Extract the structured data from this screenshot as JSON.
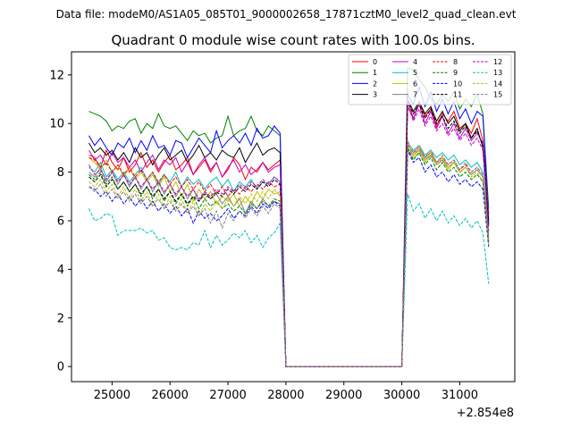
{
  "figure": {
    "suptitle": "Data file: modeM0/AS1A05_085T01_9000002658_17871cztM0_level2_quad_clean.evt",
    "title": "Quadrant 0 module wise count rates with 100.0s bins."
  },
  "chart_data": {
    "type": "line",
    "title": "Quadrant 0 module wise count rates with 100.0s bins.",
    "xlabel": "",
    "ylabel": "",
    "x_offset_label": "+2.854e8",
    "xlim": [
      24300,
      31950
    ],
    "ylim": [
      -0.62,
      12.95
    ],
    "xticks": [
      25000,
      26000,
      27000,
      28000,
      29000,
      30000,
      31000
    ],
    "xtick_labels": [
      "25000",
      "26000",
      "27000",
      "28000",
      "29000",
      "30000",
      "31000"
    ],
    "yticks": [
      0,
      2,
      4,
      6,
      8,
      10,
      12
    ],
    "ytick_labels": [
      "0",
      "2",
      "4",
      "6",
      "8",
      "10",
      "12"
    ],
    "grid": false,
    "legend_position": "top-right",
    "x_start": 24600,
    "bin_width": 100,
    "series": [
      {
        "name": "0",
        "color": "#ff0000",
        "dash": false,
        "values": [
          8.7,
          8.6,
          8.2,
          8.9,
          8.4,
          8.1,
          8.6,
          8.0,
          8.3,
          8.8,
          8.2,
          8.5,
          8.0,
          8.4,
          8.7,
          8.1,
          8.3,
          8.6,
          7.9,
          8.2,
          8.5,
          8.0,
          8.4,
          7.8,
          8.1,
          8.6,
          8.3,
          7.7,
          8.2,
          8.0,
          8.4,
          8.1,
          8.3,
          8.5,
          0.0,
          0.0,
          0.0,
          0.0,
          0.0,
          0.0,
          0.0,
          0.0,
          0.0,
          0.0,
          0.0,
          0.0,
          0.0,
          0.0,
          0.0,
          0.0,
          0.0,
          0.0,
          0.0,
          0.0,
          0.0,
          10.7,
          10.2,
          10.9,
          10.3,
          10.6,
          9.9,
          10.4,
          10.1,
          10.5,
          9.8,
          10.0,
          9.6,
          10.2,
          9.3,
          6.3
        ]
      },
      {
        "name": "1",
        "color": "#008000",
        "dash": false,
        "values": [
          10.5,
          10.4,
          10.3,
          10.1,
          9.7,
          9.9,
          9.8,
          10.1,
          10.2,
          9.6,
          10.0,
          9.8,
          10.4,
          9.9,
          9.8,
          9.9,
          9.6,
          9.3,
          9.7,
          9.5,
          9.6,
          9.2,
          9.4,
          9.5,
          10.3,
          9.5,
          9.7,
          9.8,
          10.3,
          9.7,
          9.5,
          9.9,
          9.7,
          9.5,
          0.0,
          0.0,
          0.0,
          0.0,
          0.0,
          0.0,
          0.0,
          0.0,
          0.0,
          0.0,
          0.0,
          0.0,
          0.0,
          0.0,
          0.0,
          0.0,
          0.0,
          0.0,
          0.0,
          0.0,
          0.0,
          12.3,
          12.2,
          11.8,
          11.5,
          11.0,
          10.8,
          11.2,
          10.9,
          11.3,
          10.6,
          11.0,
          10.7,
          11.2,
          10.4,
          6.5
        ]
      },
      {
        "name": "2",
        "color": "#0000ff",
        "dash": false,
        "values": [
          9.5,
          9.1,
          9.4,
          9.0,
          8.7,
          9.2,
          9.0,
          9.4,
          8.8,
          9.3,
          8.9,
          9.5,
          9.0,
          9.1,
          8.7,
          9.3,
          9.2,
          8.6,
          9.0,
          9.4,
          9.1,
          8.8,
          9.7,
          9.0,
          9.3,
          9.5,
          9.2,
          9.6,
          9.1,
          9.8,
          9.4,
          9.5,
          9.9,
          9.6,
          0.0,
          0.0,
          0.0,
          0.0,
          0.0,
          0.0,
          0.0,
          0.0,
          0.0,
          0.0,
          0.0,
          0.0,
          0.0,
          0.0,
          0.0,
          0.0,
          0.0,
          0.0,
          0.0,
          0.0,
          0.0,
          11.2,
          10.8,
          11.5,
          10.7,
          11.3,
          10.5,
          11.0,
          10.4,
          10.9,
          10.2,
          10.6,
          10.0,
          10.5,
          10.3,
          6.0
        ]
      },
      {
        "name": "3",
        "color": "#000000",
        "dash": false,
        "values": [
          9.2,
          8.8,
          9.0,
          8.7,
          8.9,
          8.5,
          8.8,
          8.4,
          9.0,
          8.6,
          8.8,
          8.3,
          8.7,
          9.0,
          8.5,
          8.7,
          8.9,
          8.4,
          8.7,
          9.1,
          8.6,
          8.8,
          8.5,
          8.9,
          8.7,
          8.6,
          9.0,
          8.4,
          8.8,
          9.2,
          8.7,
          8.9,
          9.0,
          8.8,
          0.0,
          0.0,
          0.0,
          0.0,
          0.0,
          0.0,
          0.0,
          0.0,
          0.0,
          0.0,
          0.0,
          0.0,
          0.0,
          0.0,
          0.0,
          0.0,
          0.0,
          0.0,
          0.0,
          0.0,
          0.0,
          11.0,
          10.5,
          10.9,
          10.4,
          10.7,
          10.1,
          10.5,
          10.0,
          10.3,
          9.7,
          10.0,
          9.4,
          9.8,
          9.0,
          5.8
        ]
      },
      {
        "name": "4",
        "color": "#bf00bf",
        "dash": false,
        "values": [
          8.9,
          8.5,
          8.7,
          8.3,
          8.8,
          8.4,
          8.6,
          8.2,
          8.5,
          8.0,
          8.4,
          8.7,
          8.1,
          8.5,
          8.3,
          8.6,
          8.0,
          8.4,
          7.9,
          8.3,
          8.6,
          8.1,
          8.4,
          7.8,
          8.2,
          8.5,
          8.0,
          8.3,
          7.9,
          8.1,
          8.4,
          8.0,
          8.2,
          8.3,
          0.0,
          0.0,
          0.0,
          0.0,
          0.0,
          0.0,
          0.0,
          0.0,
          0.0,
          0.0,
          0.0,
          0.0,
          0.0,
          0.0,
          0.0,
          0.0,
          0.0,
          0.0,
          0.0,
          0.0,
          0.0,
          11.0,
          10.2,
          10.8,
          10.0,
          10.5,
          9.8,
          10.3,
          9.6,
          10.0,
          9.4,
          9.8,
          9.3,
          9.6,
          9.2,
          6.2
        ]
      },
      {
        "name": "5",
        "color": "#00bfbf",
        "dash": false,
        "values": [
          8.2,
          8.0,
          8.4,
          7.8,
          8.1,
          7.7,
          8.0,
          7.6,
          7.9,
          8.2,
          7.7,
          8.0,
          7.5,
          7.9,
          7.6,
          8.0,
          7.4,
          7.8,
          7.5,
          7.7,
          7.3,
          7.6,
          7.8,
          7.4,
          7.7,
          7.2,
          7.6,
          7.4,
          7.7,
          7.3,
          7.6,
          7.5,
          7.8,
          7.6,
          0.0,
          0.0,
          0.0,
          0.0,
          0.0,
          0.0,
          0.0,
          0.0,
          0.0,
          0.0,
          0.0,
          0.0,
          0.0,
          0.0,
          0.0,
          0.0,
          0.0,
          0.0,
          0.0,
          0.0,
          0.0,
          9.2,
          8.9,
          9.1,
          8.7,
          8.9,
          8.6,
          8.8,
          8.5,
          8.7,
          8.3,
          8.5,
          8.2,
          8.4,
          8.0,
          5.5
        ]
      },
      {
        "name": "6",
        "color": "#bfbf00",
        "dash": false,
        "values": [
          8.6,
          8.4,
          8.1,
          8.5,
          8.0,
          8.3,
          7.8,
          8.2,
          7.7,
          8.0,
          7.6,
          7.9,
          7.4,
          7.8,
          7.2,
          7.6,
          7.0,
          7.5,
          6.8,
          7.3,
          6.9,
          7.2,
          6.7,
          7.0,
          6.8,
          7.1,
          6.6,
          7.0,
          6.7,
          7.2,
          6.9,
          7.3,
          7.1,
          7.2,
          0.0,
          0.0,
          0.0,
          0.0,
          0.0,
          0.0,
          0.0,
          0.0,
          0.0,
          0.0,
          0.0,
          0.0,
          0.0,
          0.0,
          0.0,
          0.0,
          0.0,
          0.0,
          0.0,
          0.0,
          0.0,
          8.9,
          8.6,
          8.8,
          8.4,
          8.7,
          8.3,
          8.5,
          8.1,
          8.4,
          8.0,
          8.2,
          7.9,
          8.1,
          7.8,
          5.2
        ]
      },
      {
        "name": "7",
        "color": "#808080",
        "dash": false,
        "values": [
          8.0,
          7.8,
          8.2,
          7.6,
          8.0,
          7.5,
          7.9,
          7.4,
          7.8,
          7.3,
          7.7,
          7.2,
          7.6,
          7.1,
          7.5,
          7.0,
          7.4,
          6.9,
          7.3,
          6.8,
          7.2,
          6.9,
          7.1,
          6.7,
          7.0,
          6.6,
          6.9,
          6.3,
          6.8,
          6.5,
          6.9,
          6.6,
          6.8,
          6.7,
          0.0,
          0.0,
          0.0,
          0.0,
          0.0,
          0.0,
          0.0,
          0.0,
          0.0,
          0.0,
          0.0,
          0.0,
          0.0,
          0.0,
          0.0,
          0.0,
          0.0,
          0.0,
          0.0,
          0.0,
          0.0,
          9.0,
          8.7,
          8.9,
          8.5,
          8.7,
          8.3,
          8.5,
          8.2,
          8.4,
          8.0,
          8.2,
          7.9,
          8.1,
          7.8,
          5.0
        ]
      },
      {
        "name": "8",
        "color": "#ff0000",
        "dash": true,
        "values": [
          8.6,
          8.5,
          8.2,
          8.4,
          8.0,
          8.3,
          7.9,
          8.2,
          7.8,
          8.1,
          7.7,
          8.0,
          7.6,
          7.9,
          7.5,
          7.8,
          7.4,
          7.7,
          7.3,
          7.6,
          7.2,
          7.5,
          7.1,
          7.4,
          7.0,
          7.3,
          7.1,
          7.4,
          7.2,
          7.5,
          7.3,
          7.6,
          7.4,
          7.5,
          0.0,
          0.0,
          0.0,
          0.0,
          0.0,
          0.0,
          0.0,
          0.0,
          0.0,
          0.0,
          0.0,
          0.0,
          0.0,
          0.0,
          0.0,
          0.0,
          0.0,
          0.0,
          0.0,
          0.0,
          0.0,
          9.1,
          8.8,
          9.0,
          8.6,
          8.8,
          8.4,
          8.6,
          8.3,
          8.5,
          8.1,
          8.3,
          8.0,
          8.2,
          7.9,
          5.3
        ]
      },
      {
        "name": "9",
        "color": "#008000",
        "dash": true,
        "values": [
          7.9,
          7.7,
          8.0,
          7.5,
          7.8,
          7.3,
          7.6,
          7.2,
          7.5,
          7.0,
          7.4,
          6.9,
          7.3,
          6.8,
          7.2,
          6.7,
          7.1,
          6.6,
          7.0,
          6.5,
          6.9,
          6.6,
          6.8,
          6.5,
          6.7,
          6.4,
          6.6,
          6.3,
          6.7,
          6.5,
          6.8,
          6.6,
          6.9,
          6.8,
          0.0,
          0.0,
          0.0,
          0.0,
          0.0,
          0.0,
          0.0,
          0.0,
          0.0,
          0.0,
          0.0,
          0.0,
          0.0,
          0.0,
          0.0,
          0.0,
          0.0,
          0.0,
          0.0,
          0.0,
          0.0,
          9.0,
          8.5,
          8.8,
          8.3,
          8.6,
          8.1,
          8.4,
          8.0,
          8.2,
          7.8,
          8.0,
          7.7,
          7.9,
          7.6,
          5.1
        ]
      },
      {
        "name": "10",
        "color": "#0000ff",
        "dash": true,
        "values": [
          7.4,
          7.3,
          7.0,
          7.2,
          6.8,
          7.1,
          6.7,
          7.0,
          6.6,
          6.9,
          6.5,
          6.8,
          6.4,
          6.7,
          6.3,
          6.6,
          6.2,
          6.5,
          5.9,
          6.4,
          6.1,
          6.3,
          6.0,
          6.2,
          6.5,
          6.1,
          6.4,
          6.2,
          6.6,
          6.3,
          6.7,
          6.5,
          6.8,
          6.6,
          0.0,
          0.0,
          0.0,
          0.0,
          0.0,
          0.0,
          0.0,
          0.0,
          0.0,
          0.0,
          0.0,
          0.0,
          0.0,
          0.0,
          0.0,
          0.0,
          0.0,
          0.0,
          0.0,
          0.0,
          0.0,
          8.9,
          8.4,
          8.6,
          8.0,
          8.3,
          7.8,
          8.0,
          7.6,
          7.9,
          7.5,
          7.7,
          7.4,
          7.6,
          7.3,
          4.9
        ]
      },
      {
        "name": "11",
        "color": "#000000",
        "dash": true,
        "values": [
          7.8,
          7.6,
          7.9,
          7.4,
          7.7,
          7.3,
          7.6,
          7.2,
          7.5,
          7.1,
          7.4,
          7.0,
          7.3,
          6.9,
          7.2,
          6.8,
          7.1,
          6.7,
          7.0,
          6.8,
          7.1,
          6.9,
          7.2,
          7.0,
          7.3,
          7.1,
          7.4,
          7.2,
          7.5,
          7.3,
          7.6,
          7.4,
          7.7,
          7.5,
          0.0,
          0.0,
          0.0,
          0.0,
          0.0,
          0.0,
          0.0,
          0.0,
          0.0,
          0.0,
          0.0,
          0.0,
          0.0,
          0.0,
          0.0,
          0.0,
          0.0,
          0.0,
          0.0,
          0.0,
          0.0,
          10.9,
          10.4,
          10.8,
          10.2,
          10.6,
          10.0,
          10.3,
          9.8,
          10.1,
          9.6,
          9.9,
          9.4,
          9.7,
          9.1,
          5.9
        ]
      },
      {
        "name": "12",
        "color": "#bf00bf",
        "dash": true,
        "values": [
          8.3,
          7.9,
          8.1,
          7.7,
          8.0,
          7.6,
          7.9,
          7.5,
          7.8,
          7.4,
          7.7,
          7.3,
          7.6,
          7.2,
          7.5,
          7.1,
          7.4,
          7.0,
          7.3,
          6.9,
          7.2,
          7.0,
          7.3,
          7.1,
          7.4,
          7.2,
          7.5,
          7.3,
          7.6,
          7.4,
          7.7,
          7.5,
          7.8,
          7.6,
          0.0,
          0.0,
          0.0,
          0.0,
          0.0,
          0.0,
          0.0,
          0.0,
          0.0,
          0.0,
          0.0,
          0.0,
          0.0,
          0.0,
          0.0,
          0.0,
          0.0,
          0.0,
          0.0,
          0.0,
          0.0,
          10.8,
          10.1,
          10.6,
          9.9,
          10.3,
          9.7,
          10.0,
          9.5,
          9.8,
          9.3,
          9.6,
          9.1,
          9.4,
          8.9,
          5.6
        ]
      },
      {
        "name": "13",
        "color": "#00bfbf",
        "dash": true,
        "values": [
          6.5,
          6.0,
          6.1,
          6.3,
          6.2,
          5.4,
          5.6,
          5.6,
          5.6,
          5.7,
          5.5,
          5.6,
          5.2,
          5.3,
          4.9,
          4.8,
          4.9,
          4.8,
          5.1,
          5.0,
          5.6,
          4.9,
          5.4,
          5.0,
          5.2,
          5.5,
          5.3,
          5.6,
          5.1,
          5.4,
          4.9,
          5.3,
          5.5,
          5.9,
          0.0,
          0.0,
          0.0,
          0.0,
          0.0,
          0.0,
          0.0,
          0.0,
          0.0,
          0.0,
          0.0,
          0.0,
          0.0,
          0.0,
          0.0,
          0.0,
          0.0,
          0.0,
          0.0,
          0.0,
          0.0,
          7.1,
          6.4,
          6.7,
          6.1,
          6.5,
          6.0,
          6.4,
          5.9,
          6.2,
          5.8,
          6.1,
          5.7,
          6.0,
          5.5,
          3.4
        ]
      },
      {
        "name": "14",
        "color": "#bfbf00",
        "dash": true,
        "values": [
          7.6,
          7.4,
          7.7,
          7.2,
          7.5,
          7.0,
          7.4,
          6.9,
          7.3,
          6.8,
          7.2,
          6.6,
          7.1,
          6.5,
          7.0,
          6.4,
          6.9,
          6.3,
          6.8,
          6.2,
          6.7,
          6.4,
          6.8,
          6.5,
          6.9,
          6.6,
          7.0,
          6.7,
          7.1,
          6.8,
          7.2,
          6.9,
          7.3,
          7.0,
          0.0,
          0.0,
          0.0,
          0.0,
          0.0,
          0.0,
          0.0,
          0.0,
          0.0,
          0.0,
          0.0,
          0.0,
          0.0,
          0.0,
          0.0,
          0.0,
          0.0,
          0.0,
          0.0,
          0.0,
          0.0,
          9.2,
          8.7,
          9.0,
          8.5,
          8.8,
          8.3,
          8.6,
          8.2,
          8.4,
          8.0,
          8.2,
          7.8,
          8.0,
          7.6,
          5.0
        ]
      },
      {
        "name": "15",
        "color": "#808080",
        "dash": true,
        "values": [
          7.4,
          7.2,
          7.5,
          7.0,
          7.3,
          6.9,
          7.2,
          6.8,
          7.1,
          6.7,
          7.0,
          6.6,
          6.9,
          6.5,
          6.8,
          6.4,
          6.7,
          6.3,
          6.6,
          6.2,
          6.5,
          5.9,
          6.4,
          5.7,
          6.3,
          6.0,
          6.4,
          6.1,
          6.5,
          6.2,
          6.6,
          6.3,
          6.7,
          6.5,
          0.0,
          0.0,
          0.0,
          0.0,
          0.0,
          0.0,
          0.0,
          0.0,
          0.0,
          0.0,
          0.0,
          0.0,
          0.0,
          0.0,
          0.0,
          0.0,
          0.0,
          0.0,
          0.0,
          0.0,
          0.0,
          9.3,
          8.8,
          9.1,
          8.6,
          8.9,
          8.4,
          8.7,
          8.3,
          8.5,
          8.1,
          8.4,
          8.0,
          8.2,
          7.9,
          5.2
        ]
      }
    ]
  }
}
